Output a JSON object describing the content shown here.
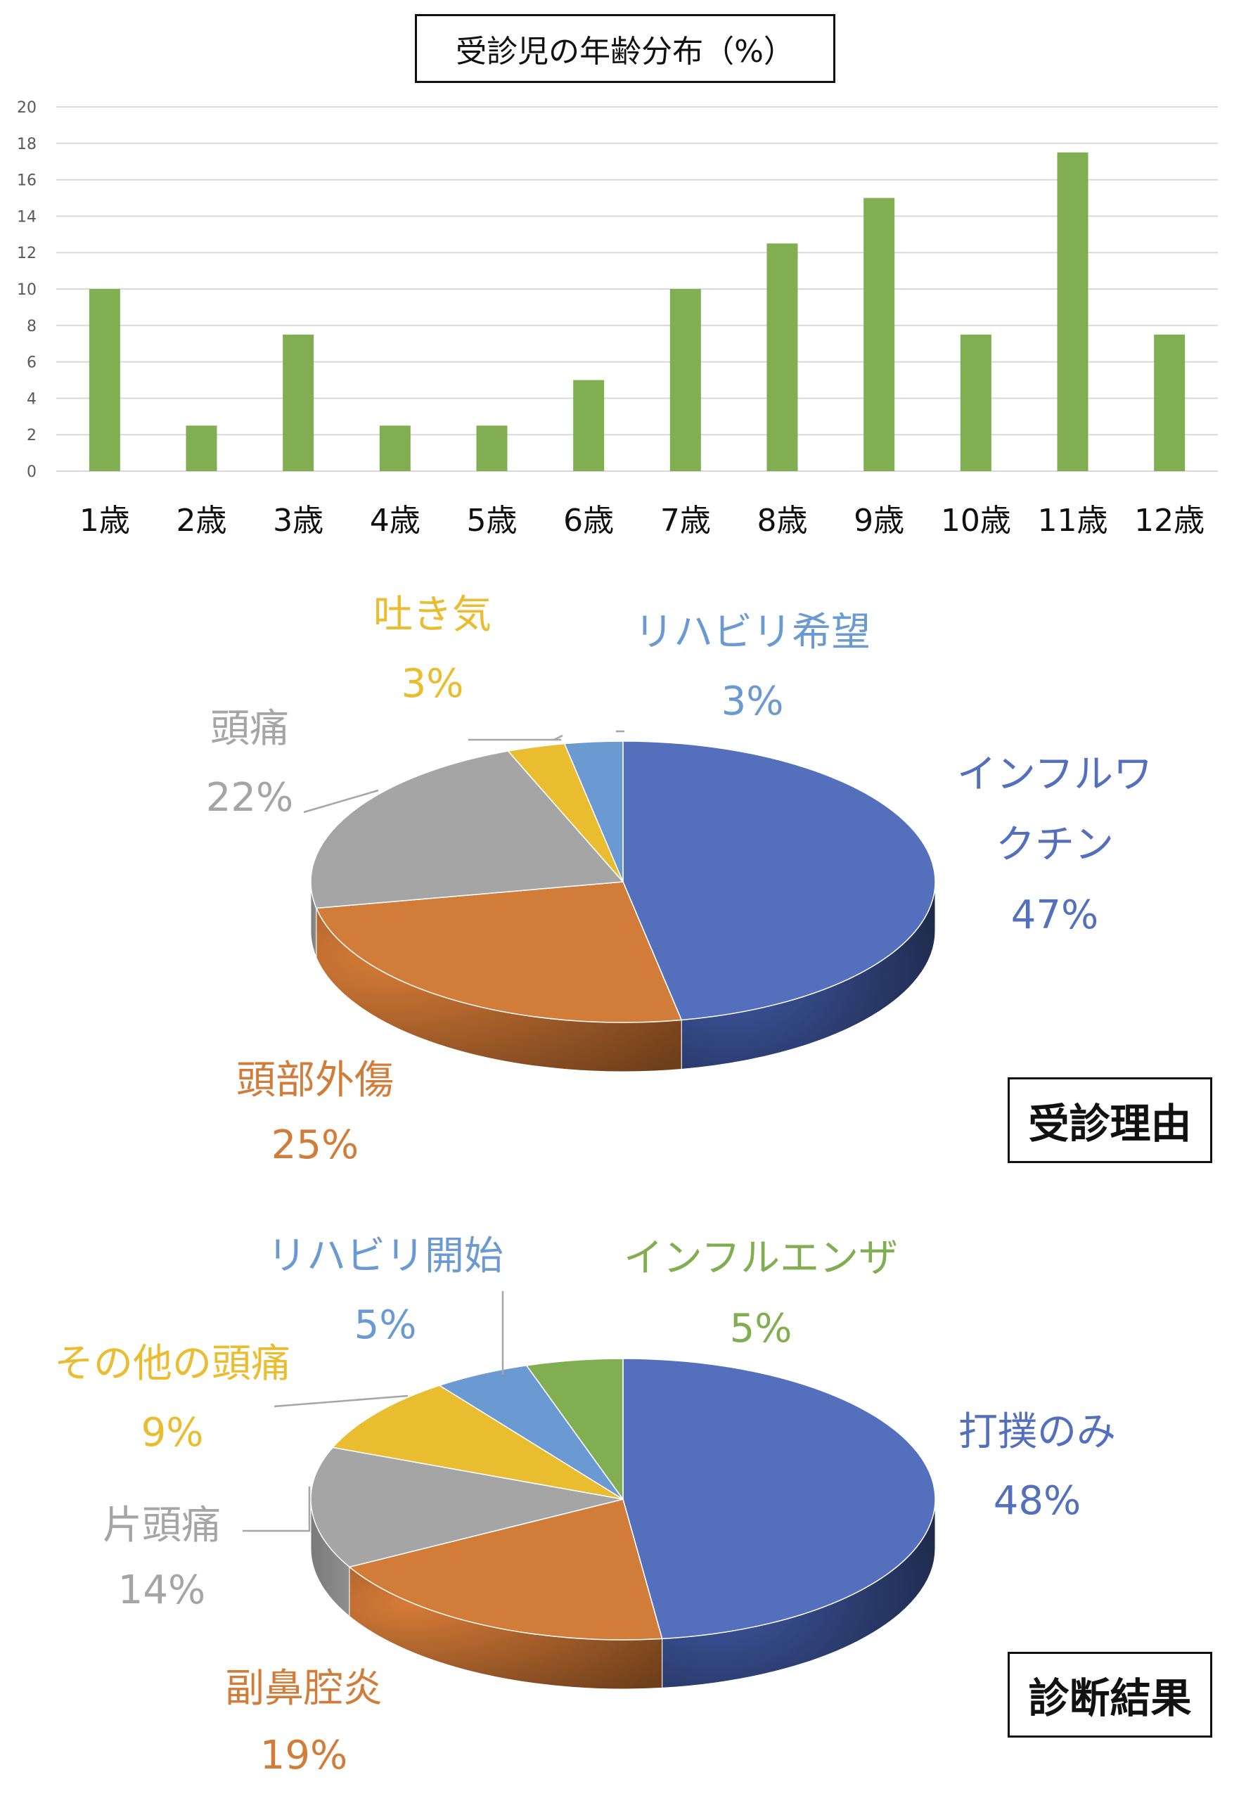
{
  "colors": {
    "bar": "#82AE52",
    "grid": "#D9D9D9",
    "axis_text": "#595959",
    "label_text": "#111111",
    "blue": "#5470BD",
    "orange": "#D27C3A",
    "gray": "#A5A5A5",
    "yellow": "#E9BD2F",
    "light_blue": "#6B9AD3",
    "green": "#82AE52",
    "leader": "#A6A6A6"
  },
  "chart_data": [
    {
      "type": "bar",
      "title": "受診児の年齢分布（%）",
      "categories": [
        "1歳",
        "2歳",
        "3歳",
        "4歳",
        "5歳",
        "6歳",
        "7歳",
        "8歳",
        "9歳",
        "10歳",
        "11歳",
        "12歳"
      ],
      "values": [
        10,
        2.5,
        7.5,
        2.5,
        2.5,
        5,
        10,
        12.5,
        15,
        7.5,
        17.5,
        7.5
      ],
      "yticks": [
        0,
        2,
        4,
        6,
        8,
        10,
        12,
        14,
        16,
        18,
        20
      ],
      "ylim": [
        0,
        20
      ],
      "grid": true,
      "xlabel": "",
      "ylabel": ""
    },
    {
      "type": "pie",
      "title": "受診理由",
      "slices": [
        {
          "label": "インフルワクチン",
          "label_lines": [
            "インフルワ",
            "クチン"
          ],
          "pct_text": "47%",
          "value": 47,
          "color": "#5470BD"
        },
        {
          "label": "頭部外傷",
          "label_lines": [
            "頭部外傷"
          ],
          "pct_text": "25%",
          "value": 25,
          "color": "#D27C3A"
        },
        {
          "label": "頭痛",
          "label_lines": [
            "頭痛"
          ],
          "pct_text": "22%",
          "value": 22,
          "color": "#A5A5A5"
        },
        {
          "label": "吐き気",
          "label_lines": [
            "吐き気"
          ],
          "pct_text": "3%",
          "value": 3,
          "color": "#E9BD2F"
        },
        {
          "label": "リハビリ希望",
          "label_lines": [
            "リハビリ希望"
          ],
          "pct_text": "3%",
          "value": 3,
          "color": "#6B9AD3"
        }
      ]
    },
    {
      "type": "pie",
      "title": "診断結果",
      "slices": [
        {
          "label": "打撲のみ",
          "label_lines": [
            "打撲のみ"
          ],
          "pct_text": "48%",
          "value": 48,
          "color": "#5470BD"
        },
        {
          "label": "副鼻腔炎",
          "label_lines": [
            "副鼻腔炎"
          ],
          "pct_text": "19%",
          "value": 19,
          "color": "#D27C3A"
        },
        {
          "label": "片頭痛",
          "label_lines": [
            "片頭痛"
          ],
          "pct_text": "14%",
          "value": 14,
          "color": "#A5A5A5"
        },
        {
          "label": "その他の頭痛",
          "label_lines": [
            "その他の頭痛"
          ],
          "pct_text": "9%",
          "value": 9,
          "color": "#E9BD2F"
        },
        {
          "label": "リハビリ開始",
          "label_lines": [
            "リハビリ開始"
          ],
          "pct_text": "5%",
          "value": 5,
          "color": "#6B9AD3"
        },
        {
          "label": "インフルエンザ",
          "label_lines": [
            "インフルエンザ"
          ],
          "pct_text": "5%",
          "value": 5,
          "color": "#82AE52"
        }
      ]
    }
  ]
}
